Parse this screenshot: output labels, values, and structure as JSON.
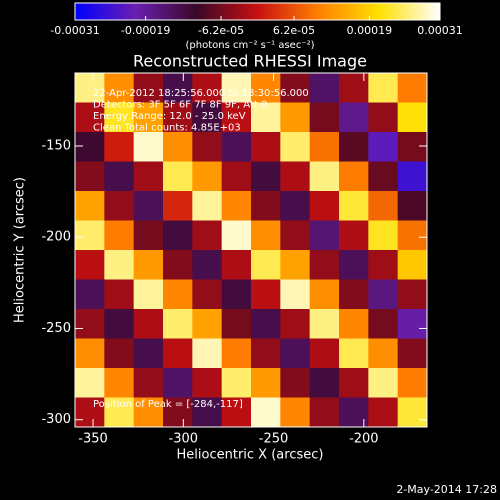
{
  "chart_data": {
    "type": "heatmap",
    "title": "Reconstructed RHESSI Image",
    "xlabel": "Heliocentric X (arcsec)",
    "ylabel": "Heliocentric Y (arcsec)",
    "footer": "2-May-2014 17:28",
    "colorbar_label": "(photons cm⁻² s⁻¹ asec⁻²)",
    "colormap": [
      "#0000ff",
      "#6a1fb0",
      "#3a0828",
      "#c81010",
      "#ff8000",
      "#ffe000",
      "#ffffff"
    ],
    "clim": [
      -0.00031,
      0.00031
    ],
    "cticks": [
      -0.00031,
      -0.00019,
      {
        "value": -6.2e-05,
        "label": "-6.2e-05"
      },
      {
        "value": 6.2e-05,
        "label": "6.2e-05"
      },
      0.00019,
      0.00031
    ],
    "annotations": [
      "22-Apr-2012 18:25:56.000 to 18:30:56.000",
      "Detectors: 3F 5F 6F 7F 8F 9F, Att 0",
      "Energy Range: 12.0 - 25.0 keV",
      "Clean    Total counts: 4.85E+03"
    ],
    "peak_label": "Position of Peak = [-284,-117]",
    "xlim": [
      -360,
      -165
    ],
    "ylim": [
      -304,
      -110
    ],
    "xticks": [
      -350,
      -300,
      -250,
      -200
    ],
    "yticks": [
      -150,
      -200,
      -250,
      -300
    ],
    "values": [
      [
        0.00026,
        0.00012,
        -4e-05,
        -0.00013,
        -2e-05,
        0.00028,
        0.00011,
        -5e-05,
        -0.00015,
        -3e-05,
        0.00024,
        0.0001
      ],
      [
        -2e-05,
        0.00022,
        0.00014,
        -3e-05,
        -0.00012,
        -1e-05,
        0.00027,
        0.00013,
        -6e-05,
        -0.00018,
        -4e-05,
        0.00021
      ],
      [
        -0.00011,
        1e-05,
        0.00029,
        0.00012,
        -4e-05,
        -0.00014,
        -2e-05,
        0.00025,
        9e-05,
        -8e-05,
        -0.00022,
        -6e-05
      ],
      [
        -5e-05,
        -0.00013,
        -3e-05,
        0.00024,
        0.00013,
        -3e-05,
        -0.00012,
        -2e-05,
        0.00026,
        0.0001,
        -7e-05,
        -0.00025
      ],
      [
        0.00014,
        -4e-05,
        -0.00014,
        2e-05,
        0.00027,
        0.00011,
        -5e-05,
        -0.00013,
        -1e-05,
        0.00023,
        8e-05,
        -9e-05
      ],
      [
        0.00025,
        0.0001,
        -6e-05,
        -0.00012,
        -3e-05,
        0.00029,
        0.00012,
        -4e-05,
        -0.00016,
        -2e-05,
        0.00022,
        9e-05
      ],
      [
        -1e-05,
        0.00026,
        0.00013,
        -5e-05,
        -0.00013,
        -2e-05,
        0.00024,
        0.00014,
        -4e-05,
        -0.00014,
        -3e-05,
        0.00018
      ],
      [
        -0.00014,
        -3e-05,
        0.00027,
        0.00011,
        -4e-05,
        -0.00012,
        -1e-05,
        0.00028,
        0.00012,
        -5e-05,
        -0.00017,
        -4e-05
      ],
      [
        -4e-05,
        -0.00012,
        -2e-05,
        0.00025,
        0.00014,
        -6e-05,
        -0.00013,
        -3e-05,
        0.00026,
        0.00011,
        -6e-05,
        -0.0002
      ],
      [
        0.00012,
        -5e-05,
        -0.00013,
        -1e-05,
        0.00028,
        0.0001,
        -4e-05,
        -0.00014,
        -2e-05,
        0.00024,
        0.00012,
        -5e-05
      ],
      [
        0.00027,
        0.00011,
        -4e-05,
        -0.00015,
        -2e-05,
        0.00025,
        0.00013,
        -5e-05,
        -0.00012,
        -3e-05,
        0.00026,
        0.0001
      ],
      [
        -2e-05,
        0.00024,
        0.00012,
        -5e-05,
        -0.00013,
        -1e-05,
        0.00029,
        0.00011,
        -4e-05,
        -0.00014,
        -2e-05,
        0.00023
      ]
    ]
  }
}
